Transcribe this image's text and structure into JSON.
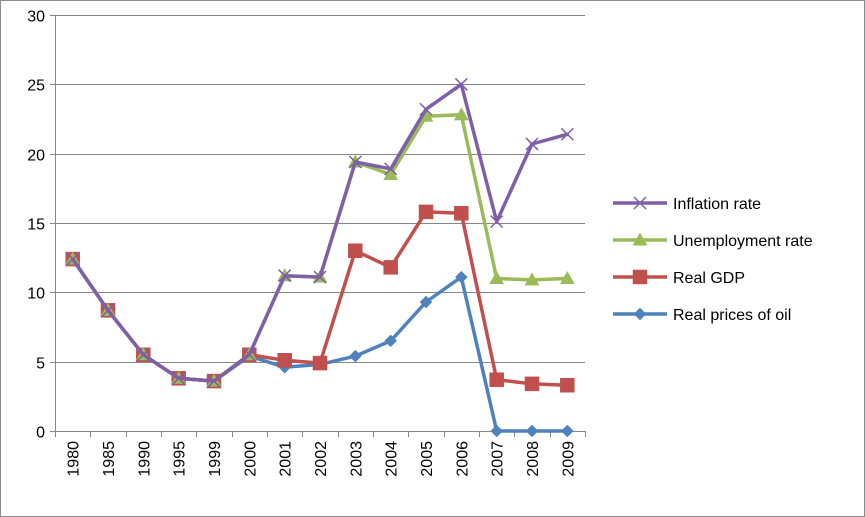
{
  "chart_data": {
    "type": "line",
    "title": "",
    "xlabel": "",
    "ylabel": "",
    "ylim": [
      0,
      30
    ],
    "y_ticks": [
      0,
      5,
      10,
      15,
      20,
      25,
      30
    ],
    "y_tick_labels": [
      "0",
      "5",
      "10",
      "15",
      "20",
      "25",
      "30"
    ],
    "grid": "horizontal",
    "legend_position": "right",
    "categories": [
      "1980",
      "1985",
      "1990",
      "1995",
      "1999",
      "2000",
      "2001",
      "2002",
      "2003",
      "2004",
      "2005",
      "2006",
      "2007",
      "2008",
      "2009"
    ],
    "series": [
      {
        "name": "Inflation rate",
        "color": "#7f5fa6",
        "marker": "x",
        "values": [
          12.4,
          8.7,
          5.5,
          3.8,
          3.6,
          5.5,
          11.2,
          11.1,
          19.4,
          18.9,
          23.2,
          25.0,
          15.1,
          20.7,
          21.4
        ]
      },
      {
        "name": "Unemployment rate",
        "color": "#9bbb59",
        "marker": "triangle",
        "values": [
          12.4,
          8.7,
          5.5,
          3.8,
          3.6,
          5.5,
          11.2,
          11.1,
          19.4,
          18.5,
          22.7,
          22.8,
          11.0,
          10.9,
          11.0
        ]
      },
      {
        "name": "Real GDP",
        "color": "#c0504d",
        "marker": "square",
        "values": [
          12.4,
          8.7,
          5.5,
          3.8,
          3.6,
          5.5,
          5.1,
          4.9,
          13.0,
          11.8,
          15.8,
          15.7,
          3.7,
          3.4,
          3.3
        ]
      },
      {
        "name": "Real prices of oil",
        "color": "#4f81bd",
        "marker": "diamond",
        "values": [
          12.4,
          8.7,
          5.5,
          3.8,
          3.6,
          5.4,
          4.6,
          4.8,
          5.4,
          6.5,
          9.3,
          11.1,
          0.0,
          0.0,
          0.0
        ]
      }
    ],
    "draw_order": [
      3,
      2,
      1,
      0
    ],
    "axis_color": "#868686",
    "grid_color": "#868686"
  }
}
